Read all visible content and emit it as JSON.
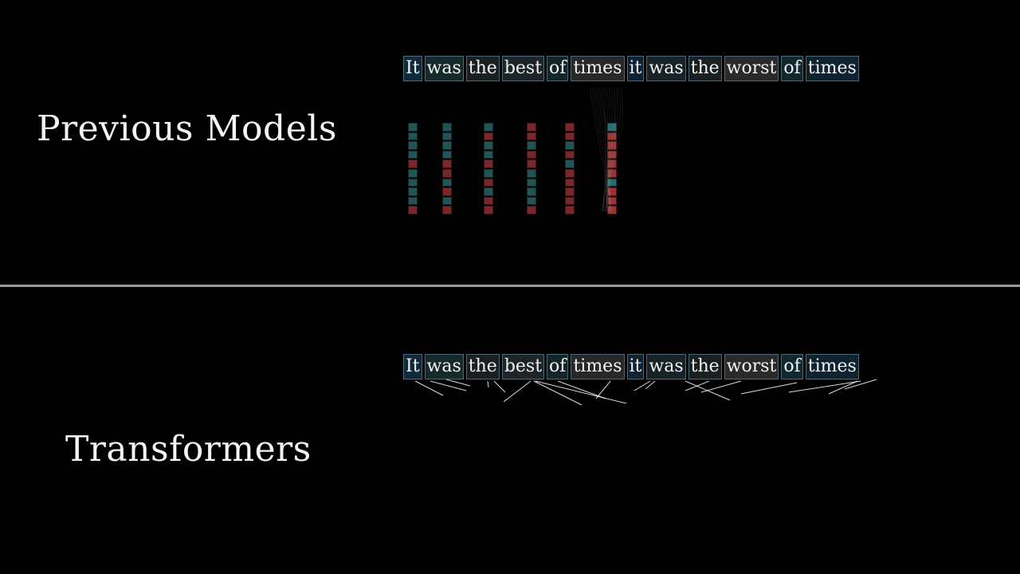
{
  "sections": {
    "top_title": "Previous Models",
    "bottom_title": "Transformers"
  },
  "tokens": [
    "It",
    "was",
    "the",
    "best",
    "of",
    "times",
    "it",
    "was",
    "the",
    "worst",
    "of",
    "times"
  ],
  "token_tints": [
    "#0f2a3a",
    "#152a2a",
    "#1a1f22",
    "#1d2528",
    "#142528",
    "#2a2826",
    "#0f2233",
    "#172326",
    "#1a2022",
    "#2c2a28",
    "#10282e",
    "#0f2230"
  ],
  "colors": {
    "background": "#000000",
    "divider": "#9a9a9a",
    "teal": "#2e6f72",
    "red": "#a3353a",
    "token_border": "#4a6a78"
  },
  "vectors": [
    [
      "teal",
      "teal",
      "teal",
      "teal",
      "red",
      "teal",
      "teal",
      "teal",
      "teal",
      "red"
    ],
    [
      "teal",
      "teal",
      "teal",
      "teal",
      "red",
      "red",
      "teal",
      "red",
      "teal",
      "red"
    ],
    [
      "teal",
      "red",
      "teal",
      "teal",
      "red",
      "teal",
      "red",
      "teal",
      "red",
      "red"
    ],
    [
      "red",
      "red",
      "teal",
      "red",
      "red",
      "teal",
      "teal",
      "teal",
      "teal",
      "red"
    ],
    [
      "red",
      "red",
      "teal",
      "red",
      "teal",
      "red",
      "red",
      "red",
      "red",
      "red"
    ],
    [
      "teal",
      "red",
      "red",
      "red",
      "red",
      "red",
      "teal",
      "red",
      "red",
      "red"
    ]
  ]
}
